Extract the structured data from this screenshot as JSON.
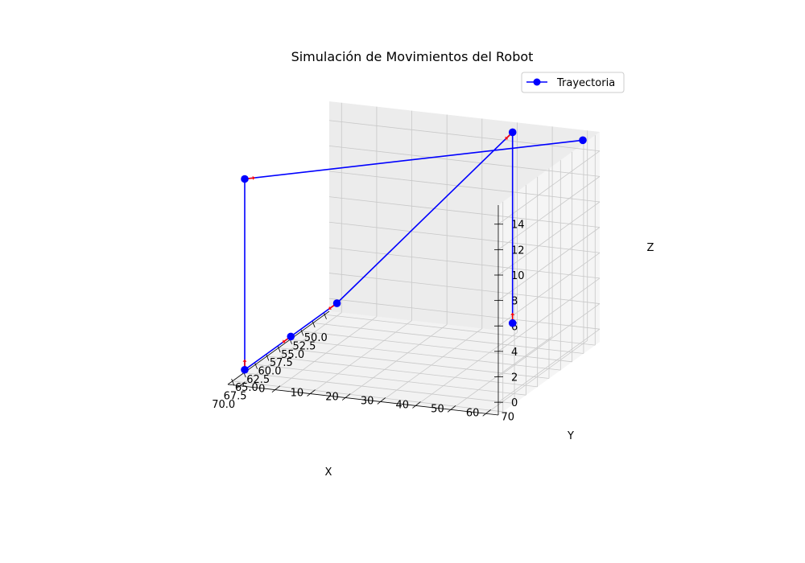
{
  "chart_data": {
    "type": "line",
    "projection": "3d",
    "title": "Simulación de Movimientos del Robot",
    "xlabel": "X",
    "ylabel": "Y",
    "zlabel": "Z",
    "x_ticks": [
      "50.0",
      "52.5",
      "55.0",
      "57.5",
      "60.0",
      "62.5",
      "65.0",
      "67.5",
      "70.0"
    ],
    "y_ticks": [
      "0",
      "10",
      "20",
      "30",
      "40",
      "50",
      "60",
      "70"
    ],
    "z_ticks": [
      "0",
      "2",
      "4",
      "6",
      "8",
      "10",
      "12",
      "14"
    ],
    "xlim": [
      49,
      71
    ],
    "ylim": [
      -3.5,
      73.5
    ],
    "zlim": [
      -1,
      15.5
    ],
    "grid": true,
    "legend_position": "top-right",
    "series": [
      {
        "name": "Trayectoria",
        "color": "#0000ff",
        "marker": "circle",
        "points": [
          {
            "x": 50,
            "y": 50,
            "z": 0
          },
          {
            "x": 50,
            "y": 50,
            "z": 15
          },
          {
            "x": 50,
            "y": 0,
            "z": 0
          },
          {
            "x": 60,
            "y": 0,
            "z": 0
          },
          {
            "x": 70,
            "y": 0,
            "z": 0
          },
          {
            "x": 70,
            "y": 0,
            "z": 15
          },
          {
            "x": 50,
            "y": 70,
            "z": 15
          }
        ]
      }
    ],
    "arrow_color": "#ff0000"
  }
}
